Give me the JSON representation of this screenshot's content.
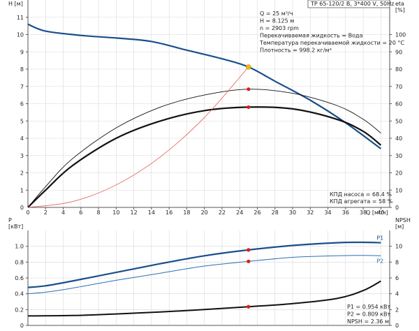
{
  "header": {
    "title": "TP 65-120/2 B, 3*400 V, 50Hz"
  },
  "info": [
    "Q = 25 м³/ч",
    "H = 8.125 м",
    "n = 2903 rpm",
    "Перекачиваемая жидкость = Вода",
    "Температура перекачиваемой жидкости = 20 °C",
    "Плотность = 998.2 кг/м³"
  ],
  "efficiency_notes": [
    "КПД насоса = 68.4 %",
    "КПД агрегата = 58 %"
  ],
  "bottom_notes": [
    "P1 = 0.954 кВт",
    "P2 = 0.809 кВт",
    "NPSH = 2.36 м"
  ],
  "colors": {
    "head": "#1a4f8c",
    "p2": "#2e6eb5",
    "black": "#111111",
    "system": "#e26050",
    "marker": "#e01b1b",
    "op_point": "#f5b800"
  },
  "chart_data": [
    {
      "type": "line",
      "xlabel": "Q [м³/ч]",
      "ylabel_left": "H [м]",
      "ylabel_right": "eta [%]",
      "xlim": [
        0,
        41
      ],
      "ylim_left": [
        0,
        12
      ],
      "ylim_right": [
        0,
        120
      ],
      "x_ticks": [
        2,
        4,
        6,
        8,
        10,
        12,
        14,
        16,
        18,
        20,
        22,
        24,
        26,
        28,
        30,
        32,
        34,
        36,
        38,
        40
      ],
      "y_ticks_left": [
        1,
        2,
        3,
        4,
        5,
        6,
        7,
        8,
        9,
        10,
        11
      ],
      "y_ticks_right": [
        0,
        10,
        20,
        30,
        40,
        50,
        60,
        70,
        80,
        90,
        100
      ],
      "grid": true,
      "operating_point": {
        "x": 25,
        "y": 8.125
      },
      "series": [
        {
          "name": "H",
          "axis": "left",
          "style": "head",
          "x": [
            0,
            2,
            6,
            10,
            14,
            18,
            22,
            25,
            28,
            32,
            36,
            40
          ],
          "y": [
            10.6,
            10.2,
            9.95,
            9.8,
            9.6,
            9.1,
            8.6,
            8.125,
            7.3,
            6.2,
            4.9,
            3.4
          ]
        },
        {
          "name": "",
          "axis": "right",
          "style": "eta_thin",
          "x": [
            0,
            2,
            5,
            10,
            15,
            20,
            25,
            30,
            35,
            38,
            40
          ],
          "y": [
            0,
            12,
            28,
            46,
            58,
            65,
            68.4,
            66,
            59,
            51,
            43
          ]
        },
        {
          "name": "",
          "axis": "right",
          "style": "eta_thick",
          "x": [
            0,
            2,
            5,
            10,
            15,
            20,
            25,
            30,
            35,
            38,
            40
          ],
          "y": [
            0,
            10,
            24,
            40,
            50,
            56,
            58,
            57,
            51,
            44,
            36
          ]
        },
        {
          "name": "",
          "axis": "left",
          "style": "system",
          "x": [
            0,
            5,
            10,
            15,
            20,
            25
          ],
          "y": [
            0,
            0.33,
            1.3,
            2.92,
            5.2,
            8.125
          ]
        }
      ],
      "markers": [
        {
          "x": 25,
          "axis": "right",
          "y": 68.4
        },
        {
          "x": 25,
          "axis": "right",
          "y": 58
        }
      ]
    },
    {
      "type": "line",
      "xlabel": "",
      "ylabel_left": "P [кВт]",
      "ylabel_right": "NPSH [м]",
      "xlim": [
        0,
        41
      ],
      "ylim_left": [
        0,
        1.2
      ],
      "ylim_right": [
        0,
        12
      ],
      "y_ticks_left": [
        0,
        0.2,
        0.4,
        0.6,
        0.8,
        1.0
      ],
      "y_tick_labels_left": [
        "0",
        "0.2",
        "0.4",
        "0.6",
        "0.8",
        "1.0"
      ],
      "y_ticks_right": [
        0,
        2,
        4,
        6,
        8,
        10
      ],
      "grid": true,
      "series": [
        {
          "name": "P1",
          "axis": "left",
          "style": "p1",
          "x": [
            0,
            2,
            5,
            10,
            15,
            20,
            25,
            30,
            35,
            38,
            40
          ],
          "y": [
            0.48,
            0.5,
            0.56,
            0.67,
            0.78,
            0.88,
            0.954,
            1.01,
            1.045,
            1.05,
            1.045
          ]
        },
        {
          "name": "P2",
          "axis": "left",
          "style": "p2",
          "x": [
            0,
            2,
            5,
            10,
            15,
            20,
            25,
            30,
            35,
            38,
            40
          ],
          "y": [
            0.4,
            0.42,
            0.47,
            0.57,
            0.66,
            0.75,
            0.809,
            0.86,
            0.88,
            0.885,
            0.88
          ]
        },
        {
          "name": "NPSH",
          "axis": "right",
          "style": "npsh",
          "x": [
            0,
            5,
            10,
            15,
            20,
            25,
            30,
            35,
            38,
            40
          ],
          "y": [
            1.2,
            1.25,
            1.45,
            1.7,
            2.0,
            2.36,
            2.75,
            3.4,
            4.4,
            5.6
          ]
        }
      ],
      "markers": [
        {
          "x": 25,
          "axis": "left",
          "y": 0.954
        },
        {
          "x": 25,
          "axis": "left",
          "y": 0.809
        },
        {
          "x": 25,
          "axis": "right",
          "y": 2.36
        }
      ]
    }
  ]
}
